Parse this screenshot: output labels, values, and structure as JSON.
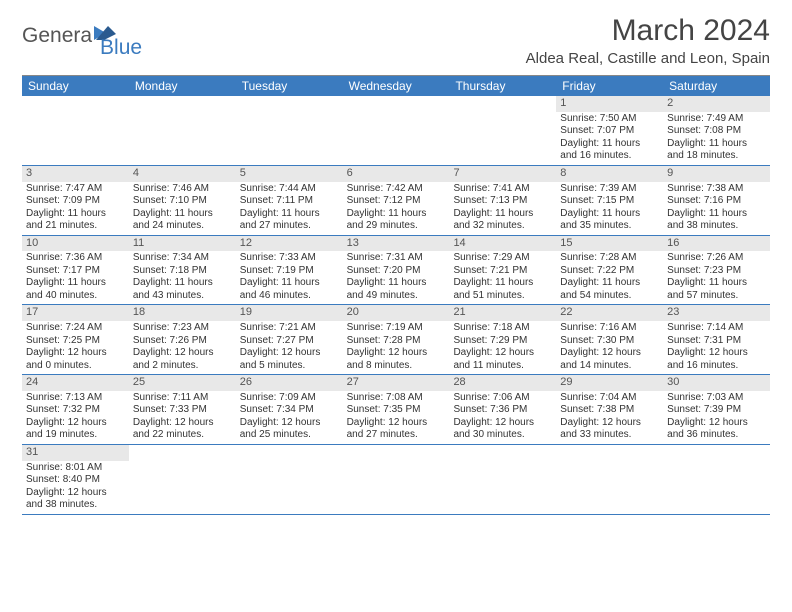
{
  "logo": {
    "general": "Genera",
    "blue": "Blue"
  },
  "title": "March 2024",
  "location": "Aldea Real, Castille and Leon, Spain",
  "colors": {
    "header_bg": "#3b7bbf",
    "header_text": "#ffffff",
    "daynum_bg": "#e8e8e8",
    "border": "#3b7bbf",
    "text": "#333333"
  },
  "daysOfWeek": [
    "Sunday",
    "Monday",
    "Tuesday",
    "Wednesday",
    "Thursday",
    "Friday",
    "Saturday"
  ],
  "weeks": [
    [
      {
        "n": "",
        "sr": "",
        "ss": "",
        "dl": ""
      },
      {
        "n": "",
        "sr": "",
        "ss": "",
        "dl": ""
      },
      {
        "n": "",
        "sr": "",
        "ss": "",
        "dl": ""
      },
      {
        "n": "",
        "sr": "",
        "ss": "",
        "dl": ""
      },
      {
        "n": "",
        "sr": "",
        "ss": "",
        "dl": ""
      },
      {
        "n": "1",
        "sr": "Sunrise: 7:50 AM",
        "ss": "Sunset: 7:07 PM",
        "dl": "Daylight: 11 hours and 16 minutes."
      },
      {
        "n": "2",
        "sr": "Sunrise: 7:49 AM",
        "ss": "Sunset: 7:08 PM",
        "dl": "Daylight: 11 hours and 18 minutes."
      }
    ],
    [
      {
        "n": "3",
        "sr": "Sunrise: 7:47 AM",
        "ss": "Sunset: 7:09 PM",
        "dl": "Daylight: 11 hours and 21 minutes."
      },
      {
        "n": "4",
        "sr": "Sunrise: 7:46 AM",
        "ss": "Sunset: 7:10 PM",
        "dl": "Daylight: 11 hours and 24 minutes."
      },
      {
        "n": "5",
        "sr": "Sunrise: 7:44 AM",
        "ss": "Sunset: 7:11 PM",
        "dl": "Daylight: 11 hours and 27 minutes."
      },
      {
        "n": "6",
        "sr": "Sunrise: 7:42 AM",
        "ss": "Sunset: 7:12 PM",
        "dl": "Daylight: 11 hours and 29 minutes."
      },
      {
        "n": "7",
        "sr": "Sunrise: 7:41 AM",
        "ss": "Sunset: 7:13 PM",
        "dl": "Daylight: 11 hours and 32 minutes."
      },
      {
        "n": "8",
        "sr": "Sunrise: 7:39 AM",
        "ss": "Sunset: 7:15 PM",
        "dl": "Daylight: 11 hours and 35 minutes."
      },
      {
        "n": "9",
        "sr": "Sunrise: 7:38 AM",
        "ss": "Sunset: 7:16 PM",
        "dl": "Daylight: 11 hours and 38 minutes."
      }
    ],
    [
      {
        "n": "10",
        "sr": "Sunrise: 7:36 AM",
        "ss": "Sunset: 7:17 PM",
        "dl": "Daylight: 11 hours and 40 minutes."
      },
      {
        "n": "11",
        "sr": "Sunrise: 7:34 AM",
        "ss": "Sunset: 7:18 PM",
        "dl": "Daylight: 11 hours and 43 minutes."
      },
      {
        "n": "12",
        "sr": "Sunrise: 7:33 AM",
        "ss": "Sunset: 7:19 PM",
        "dl": "Daylight: 11 hours and 46 minutes."
      },
      {
        "n": "13",
        "sr": "Sunrise: 7:31 AM",
        "ss": "Sunset: 7:20 PM",
        "dl": "Daylight: 11 hours and 49 minutes."
      },
      {
        "n": "14",
        "sr": "Sunrise: 7:29 AM",
        "ss": "Sunset: 7:21 PM",
        "dl": "Daylight: 11 hours and 51 minutes."
      },
      {
        "n": "15",
        "sr": "Sunrise: 7:28 AM",
        "ss": "Sunset: 7:22 PM",
        "dl": "Daylight: 11 hours and 54 minutes."
      },
      {
        "n": "16",
        "sr": "Sunrise: 7:26 AM",
        "ss": "Sunset: 7:23 PM",
        "dl": "Daylight: 11 hours and 57 minutes."
      }
    ],
    [
      {
        "n": "17",
        "sr": "Sunrise: 7:24 AM",
        "ss": "Sunset: 7:25 PM",
        "dl": "Daylight: 12 hours and 0 minutes."
      },
      {
        "n": "18",
        "sr": "Sunrise: 7:23 AM",
        "ss": "Sunset: 7:26 PM",
        "dl": "Daylight: 12 hours and 2 minutes."
      },
      {
        "n": "19",
        "sr": "Sunrise: 7:21 AM",
        "ss": "Sunset: 7:27 PM",
        "dl": "Daylight: 12 hours and 5 minutes."
      },
      {
        "n": "20",
        "sr": "Sunrise: 7:19 AM",
        "ss": "Sunset: 7:28 PM",
        "dl": "Daylight: 12 hours and 8 minutes."
      },
      {
        "n": "21",
        "sr": "Sunrise: 7:18 AM",
        "ss": "Sunset: 7:29 PM",
        "dl": "Daylight: 12 hours and 11 minutes."
      },
      {
        "n": "22",
        "sr": "Sunrise: 7:16 AM",
        "ss": "Sunset: 7:30 PM",
        "dl": "Daylight: 12 hours and 14 minutes."
      },
      {
        "n": "23",
        "sr": "Sunrise: 7:14 AM",
        "ss": "Sunset: 7:31 PM",
        "dl": "Daylight: 12 hours and 16 minutes."
      }
    ],
    [
      {
        "n": "24",
        "sr": "Sunrise: 7:13 AM",
        "ss": "Sunset: 7:32 PM",
        "dl": "Daylight: 12 hours and 19 minutes."
      },
      {
        "n": "25",
        "sr": "Sunrise: 7:11 AM",
        "ss": "Sunset: 7:33 PM",
        "dl": "Daylight: 12 hours and 22 minutes."
      },
      {
        "n": "26",
        "sr": "Sunrise: 7:09 AM",
        "ss": "Sunset: 7:34 PM",
        "dl": "Daylight: 12 hours and 25 minutes."
      },
      {
        "n": "27",
        "sr": "Sunrise: 7:08 AM",
        "ss": "Sunset: 7:35 PM",
        "dl": "Daylight: 12 hours and 27 minutes."
      },
      {
        "n": "28",
        "sr": "Sunrise: 7:06 AM",
        "ss": "Sunset: 7:36 PM",
        "dl": "Daylight: 12 hours and 30 minutes."
      },
      {
        "n": "29",
        "sr": "Sunrise: 7:04 AM",
        "ss": "Sunset: 7:38 PM",
        "dl": "Daylight: 12 hours and 33 minutes."
      },
      {
        "n": "30",
        "sr": "Sunrise: 7:03 AM",
        "ss": "Sunset: 7:39 PM",
        "dl": "Daylight: 12 hours and 36 minutes."
      }
    ],
    [
      {
        "n": "31",
        "sr": "Sunrise: 8:01 AM",
        "ss": "Sunset: 8:40 PM",
        "dl": "Daylight: 12 hours and 38 minutes."
      },
      {
        "n": "",
        "sr": "",
        "ss": "",
        "dl": ""
      },
      {
        "n": "",
        "sr": "",
        "ss": "",
        "dl": ""
      },
      {
        "n": "",
        "sr": "",
        "ss": "",
        "dl": ""
      },
      {
        "n": "",
        "sr": "",
        "ss": "",
        "dl": ""
      },
      {
        "n": "",
        "sr": "",
        "ss": "",
        "dl": ""
      },
      {
        "n": "",
        "sr": "",
        "ss": "",
        "dl": ""
      }
    ]
  ]
}
